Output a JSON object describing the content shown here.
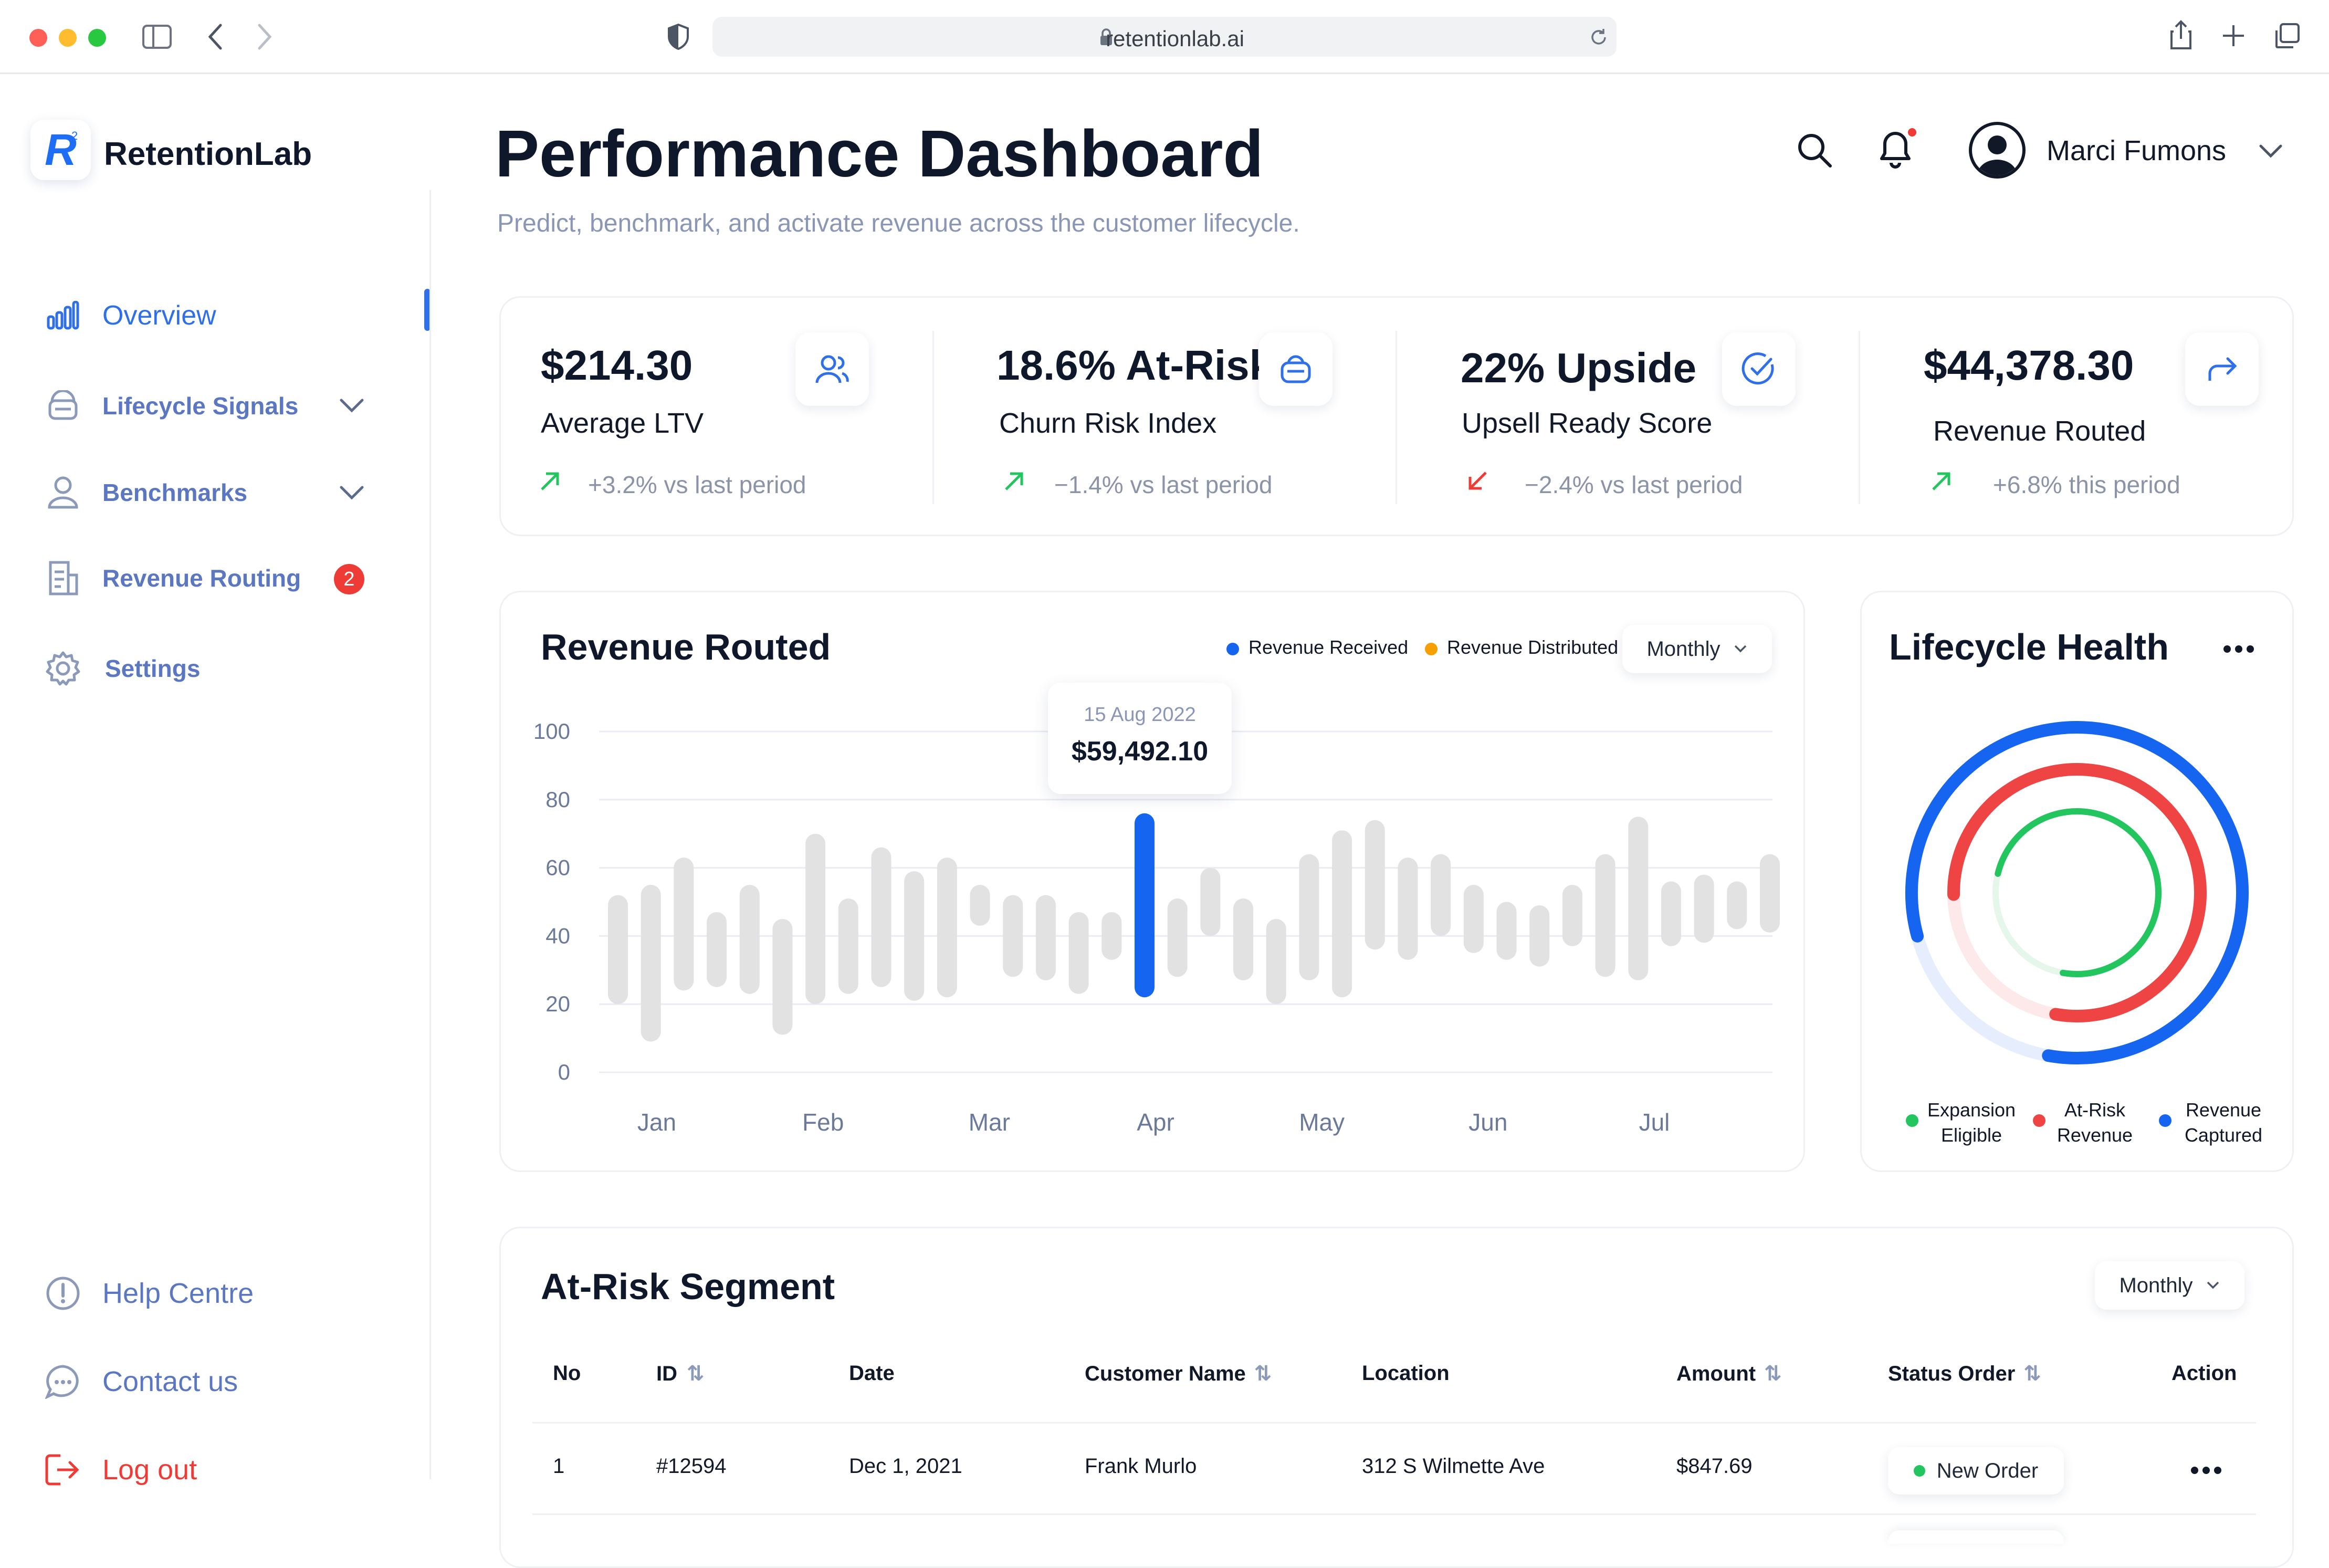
{
  "browser": {
    "url": "retentionlab.ai"
  },
  "app": {
    "name": "RetentionLab",
    "logo_letter": "R"
  },
  "sidebar": {
    "items": [
      {
        "label": "Overview",
        "icon": "bar-chart-icon",
        "active": true
      },
      {
        "label": "Lifecycle Signals",
        "icon": "signal-icon",
        "expandable": true
      },
      {
        "label": "Benchmarks",
        "icon": "user-icon",
        "expandable": true
      },
      {
        "label": "Revenue Routing",
        "icon": "document-icon",
        "badge": "2"
      },
      {
        "label": "Settings",
        "icon": "gear-icon"
      }
    ],
    "footer": [
      {
        "label": "Help Centre",
        "icon": "info-circle-icon"
      },
      {
        "label": "Contact us",
        "icon": "chat-icon"
      },
      {
        "label": "Log out",
        "icon": "logout-icon",
        "color": "#ef3b36"
      }
    ]
  },
  "header": {
    "title": "Performance Dashboard",
    "subtitle": "Predict, benchmark, and activate revenue across the customer lifecycle.",
    "user_name": "Marci Fumons"
  },
  "kpis": [
    {
      "value": "$214.30",
      "label": "Average LTV",
      "delta": "+3.2% vs last period",
      "trend": "up",
      "icon": "users-icon"
    },
    {
      "value": "18.6% At-Risk",
      "label": "Churn Risk Index",
      "delta": "−1.4% vs last period",
      "trend": "up",
      "icon": "bag-icon"
    },
    {
      "value": "22% Upside",
      "label": "Upsell Ready Score",
      "delta": "−2.4% vs last period",
      "trend": "down",
      "icon": "check-circle-icon"
    },
    {
      "value": "$44,378.30",
      "label": "Revenue Routed",
      "delta": "+6.8% this period",
      "trend": "up",
      "icon": "share-arrow-icon"
    }
  ],
  "revenue_card": {
    "title": "Revenue Routed",
    "legend": [
      {
        "name": "Revenue Received",
        "color": "#1565f0"
      },
      {
        "name": "Revenue Distributed",
        "color": "#f5a000"
      }
    ],
    "period": "Monthly",
    "tooltip": {
      "date": "15 Aug 2022",
      "value": "$59,492.10"
    }
  },
  "chart_data": {
    "type": "bar",
    "title": "Revenue Routed",
    "xlabel": "",
    "ylabel": "",
    "ylim": [
      0,
      100
    ],
    "yticks": [
      0,
      20,
      40,
      60,
      80,
      100
    ],
    "x_tick_labels": [
      "Jan",
      "Feb",
      "Mar",
      "Apr",
      "May",
      "Jun",
      "Jul"
    ],
    "grid": true,
    "highlight_index": 16,
    "highlight_color": "#1565f0",
    "bar_color": "#e2e2e2",
    "series": [
      {
        "name": "Revenue Received",
        "ranges": [
          [
            20,
            52
          ],
          [
            9,
            55
          ],
          [
            24,
            63
          ],
          [
            25,
            47
          ],
          [
            23,
            55
          ],
          [
            11,
            45
          ],
          [
            20,
            70
          ],
          [
            23,
            51
          ],
          [
            25,
            66
          ],
          [
            21,
            59
          ],
          [
            22,
            63
          ],
          [
            43,
            55
          ],
          [
            28,
            52
          ],
          [
            27,
            52
          ],
          [
            23,
            47
          ],
          [
            33,
            47
          ],
          [
            22,
            76
          ],
          [
            28,
            51
          ],
          [
            40,
            60
          ],
          [
            27,
            51
          ],
          [
            20,
            45
          ],
          [
            27,
            64
          ],
          [
            22,
            71
          ],
          [
            36,
            74
          ],
          [
            33,
            63
          ],
          [
            40,
            64
          ],
          [
            35,
            55
          ],
          [
            33,
            50
          ],
          [
            31,
            49
          ],
          [
            37,
            55
          ],
          [
            28,
            64
          ],
          [
            27,
            75
          ],
          [
            37,
            56
          ],
          [
            38,
            58
          ],
          [
            42,
            56
          ],
          [
            41,
            64
          ]
        ]
      }
    ]
  },
  "lifecycle": {
    "title": "Lifecycle Health",
    "rings": [
      {
        "name": "Revenue Captured",
        "color": "#1565f0",
        "fraction": 0.82
      },
      {
        "name": "At-Risk Revenue",
        "color": "#ef4444",
        "fraction": 0.78
      },
      {
        "name": "Expansion Eligible",
        "color": "#22c55e",
        "fraction": 0.74
      }
    ],
    "legend": [
      {
        "line1": "Expansion",
        "line2": "Eligible",
        "color": "#22c55e"
      },
      {
        "line1": "At-Risk",
        "line2": "Revenue",
        "color": "#ef4444"
      },
      {
        "line1": "Revenue",
        "line2": "Captured",
        "color": "#1565f0"
      }
    ]
  },
  "segment": {
    "title": "At-Risk Segment",
    "period": "Monthly",
    "columns": [
      "No",
      "ID",
      "Date",
      "Customer Name",
      "Location",
      "Amount",
      "Status Order",
      "Action"
    ],
    "rows": [
      {
        "no": "1",
        "id": "#12594",
        "date": "Dec 1, 2021",
        "customer": "Frank Murlo",
        "location": "312 S Wilmette Ave",
        "amount": "$847.69",
        "status": "New Order",
        "status_color": "#22c55e"
      }
    ]
  }
}
